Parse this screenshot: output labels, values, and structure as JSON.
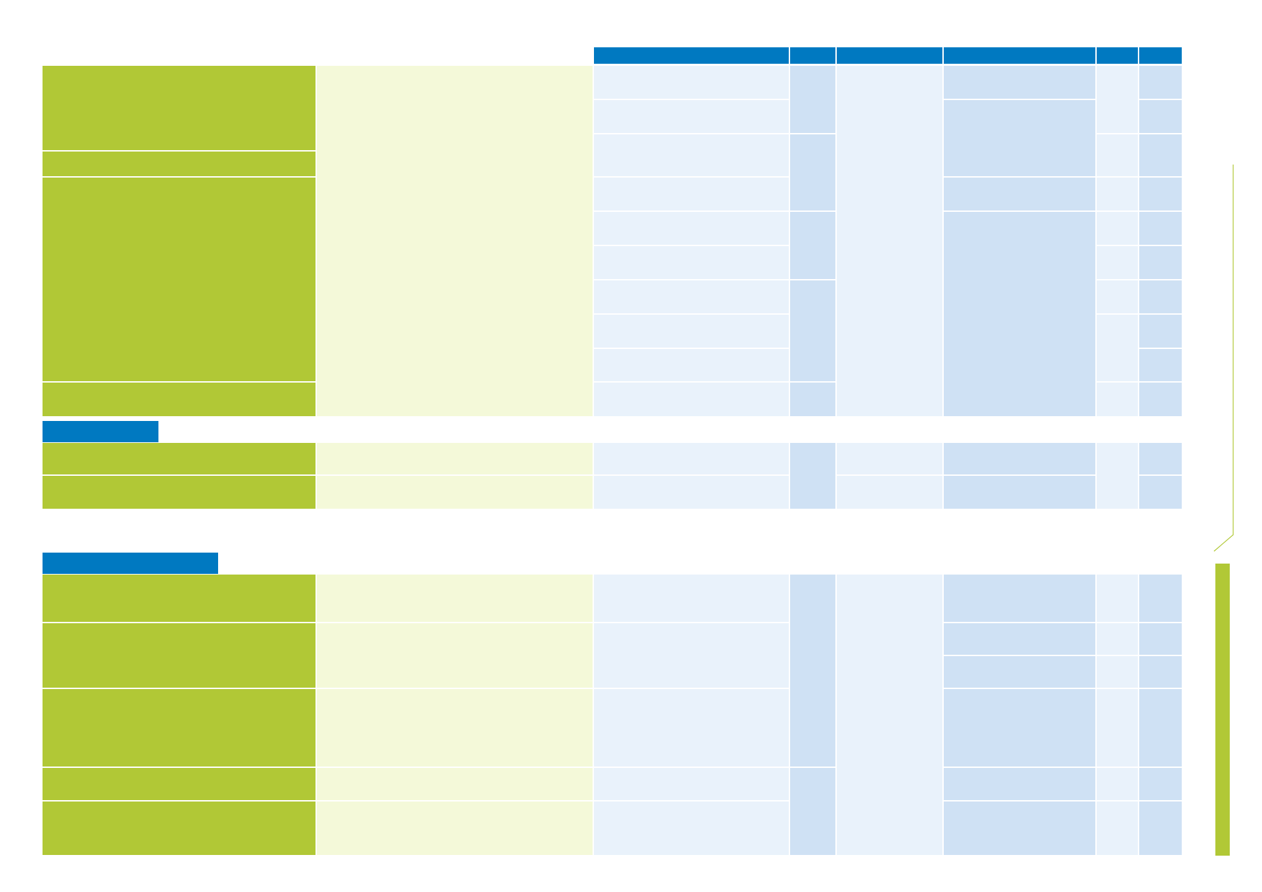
{
  "colors": {
    "header_blue": "#0079c1",
    "accent_green": "#b1c836",
    "pale_green": "#f4f9d9",
    "pale_blue": "#e9f2fb",
    "mid_blue": "#cfe1f4"
  },
  "table": {
    "header_labels": [
      "",
      "",
      "",
      "",
      "",
      ""
    ]
  },
  "sections": [
    {
      "title": ""
    },
    {
      "title": ""
    }
  ],
  "sidebar": {
    "accent_bar": "green"
  }
}
